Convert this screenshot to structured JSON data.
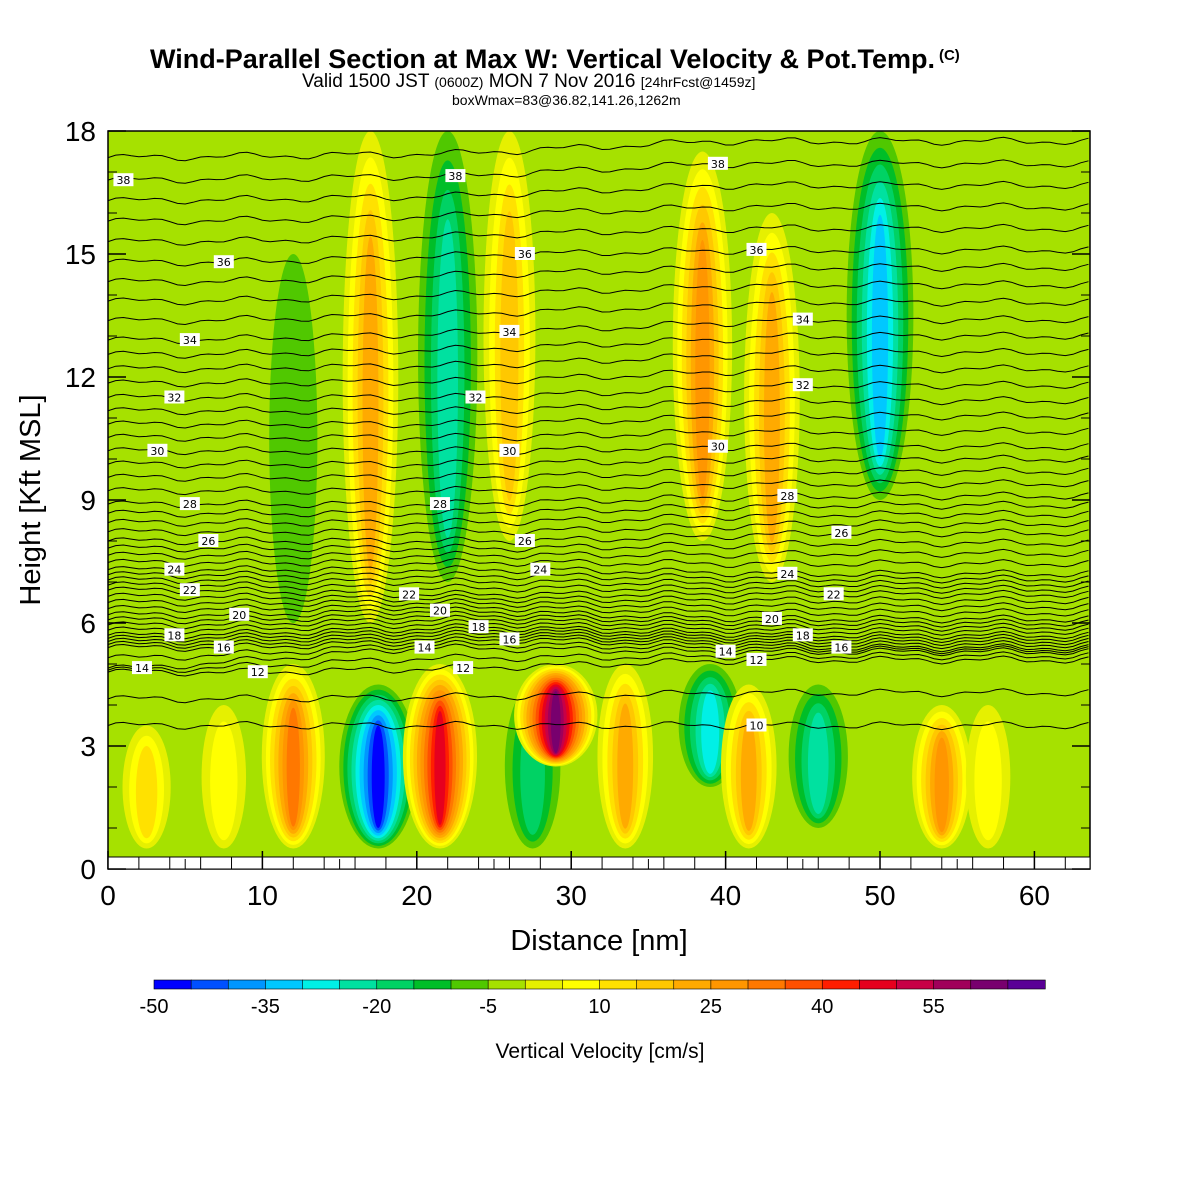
{
  "header": {
    "title": "Wind-Parallel Section at Max W: Vertical Velocity & Pot.Temp.",
    "copyright": "(C)",
    "valid_prefix": "Valid 1500 JST",
    "valid_utc": "(0600Z)",
    "valid_date": "MON 7 Nov 2016",
    "forecast": "[24hrFcst@1459z]",
    "box_info": "boxWmax=83@36.82,141.26,1262m"
  },
  "colors": {
    "background_field": "#a6e100",
    "frame": "#000000"
  },
  "chart_data": {
    "type": "heatmap",
    "xlabel": "Distance [nm]",
    "ylabel": "Height [Kft MSL]",
    "xlim": [
      0,
      63.6
    ],
    "ylim": [
      0,
      18
    ],
    "x_ticks": [
      0,
      10,
      20,
      30,
      40,
      50,
      60
    ],
    "y_ticks": [
      0,
      3,
      6,
      9,
      12,
      15,
      18
    ],
    "x_tick_labels": [
      "0",
      "10",
      "20",
      "30",
      "40",
      "50",
      "60"
    ],
    "y_tick_labels": [
      "0",
      "3",
      "6",
      "9",
      "12",
      "15",
      "18"
    ],
    "colorbar": {
      "label": "Vertical Velocity [cm/s]",
      "levels": [
        -50,
        -45,
        -40,
        -35,
        -30,
        -25,
        -20,
        -15,
        -10,
        -5,
        0,
        5,
        10,
        15,
        20,
        25,
        30,
        35,
        40,
        45,
        50,
        55,
        60,
        65
      ],
      "tick_values": [
        -50,
        -35,
        -20,
        -5,
        10,
        25,
        40,
        55
      ],
      "tick_labels": [
        "-50",
        "-35",
        "-20",
        "-5",
        "10",
        "25",
        "40",
        "55"
      ],
      "colors": [
        "#0000ff",
        "#0050ff",
        "#0096ff",
        "#00c8ff",
        "#00f0e6",
        "#00e1a0",
        "#00d264",
        "#00be28",
        "#50c800",
        "#a6e100",
        "#e6f000",
        "#ffff00",
        "#ffe100",
        "#ffc800",
        "#ffaa00",
        "#ff9600",
        "#ff7800",
        "#ff5000",
        "#ff1e00",
        "#e6001e",
        "#c80046",
        "#a0005a",
        "#78006e",
        "#5a0096"
      ]
    },
    "vertical_velocity_cells": [
      {
        "x": 2.5,
        "z_bottom": 0.5,
        "z_top": 3.5,
        "w": 10
      },
      {
        "x": 5,
        "z_bottom": 0.5,
        "z_top": 4.5,
        "w": -5
      },
      {
        "x": 7.5,
        "z_bottom": 0.5,
        "z_top": 4,
        "w": 5
      },
      {
        "x": 12,
        "z_bottom": 0.5,
        "z_top": 5,
        "w": 30
      },
      {
        "x": 12,
        "z_bottom": 6,
        "z_top": 15,
        "w": -10
      },
      {
        "x": 14.5,
        "z_bottom": 0.5,
        "z_top": 4,
        "w": -5
      },
      {
        "x": 17.5,
        "z_bottom": 0.5,
        "z_top": 4.5,
        "w": -50
      },
      {
        "x": 17,
        "z_bottom": 6,
        "z_top": 18,
        "w": 20
      },
      {
        "x": 21.5,
        "z_bottom": 0.5,
        "z_top": 5,
        "w": 45
      },
      {
        "x": 22,
        "z_bottom": 7,
        "z_top": 18,
        "w": -25
      },
      {
        "x": 27.5,
        "z_bottom": 0.5,
        "z_top": 4.5,
        "w": -20
      },
      {
        "x": 26,
        "z_bottom": 8,
        "z_top": 18,
        "w": 15
      },
      {
        "x": 29,
        "z_bottom": 2.5,
        "z_top": 5,
        "w": 60
      },
      {
        "x": 33.5,
        "z_bottom": 0.5,
        "z_top": 5,
        "w": 20
      },
      {
        "x": 38.5,
        "z_bottom": 8,
        "z_top": 17.5,
        "w": 25
      },
      {
        "x": 39,
        "z_bottom": 2,
        "z_top": 5,
        "w": -30
      },
      {
        "x": 41.5,
        "z_bottom": 0.5,
        "z_top": 4.5,
        "w": 20
      },
      {
        "x": 43,
        "z_bottom": 7,
        "z_top": 16,
        "w": 20
      },
      {
        "x": 46,
        "z_bottom": 1,
        "z_top": 4.5,
        "w": -25
      },
      {
        "x": 50,
        "z_bottom": 9,
        "z_top": 18,
        "w": -35
      },
      {
        "x": 54,
        "z_bottom": 0.5,
        "z_top": 4,
        "w": 25
      },
      {
        "x": 57,
        "z_bottom": 0.5,
        "z_top": 4,
        "w": 5
      },
      {
        "x": 60,
        "z_bottom": 1,
        "z_top": 4,
        "w": -5
      }
    ],
    "theta_contour_labels": [
      {
        "value": "38",
        "x": 1,
        "z": 16.8
      },
      {
        "value": "38",
        "x": 22.5,
        "z": 16.9
      },
      {
        "value": "38",
        "x": 39.5,
        "z": 17.2
      },
      {
        "value": "36",
        "x": 7.5,
        "z": 14.8
      },
      {
        "value": "36",
        "x": 27,
        "z": 15
      },
      {
        "value": "36",
        "x": 42,
        "z": 15.1
      },
      {
        "value": "34",
        "x": 5.3,
        "z": 12.9
      },
      {
        "value": "34",
        "x": 26,
        "z": 13.1
      },
      {
        "value": "34",
        "x": 45,
        "z": 13.4
      },
      {
        "value": "32",
        "x": 4.3,
        "z": 11.5
      },
      {
        "value": "32",
        "x": 23.8,
        "z": 11.5
      },
      {
        "value": "32",
        "x": 45,
        "z": 11.8
      },
      {
        "value": "30",
        "x": 3.2,
        "z": 10.2
      },
      {
        "value": "30",
        "x": 26,
        "z": 10.2
      },
      {
        "value": "30",
        "x": 39.5,
        "z": 10.3
      },
      {
        "value": "28",
        "x": 5.3,
        "z": 8.9
      },
      {
        "value": "28",
        "x": 21.5,
        "z": 8.9
      },
      {
        "value": "28",
        "x": 44,
        "z": 9.1
      },
      {
        "value": "26",
        "x": 6.5,
        "z": 8
      },
      {
        "value": "26",
        "x": 27,
        "z": 8
      },
      {
        "value": "26",
        "x": 47.5,
        "z": 8.2
      },
      {
        "value": "24",
        "x": 4.3,
        "z": 7.3
      },
      {
        "value": "24",
        "x": 28,
        "z": 7.3
      },
      {
        "value": "24",
        "x": 44,
        "z": 7.2
      },
      {
        "value": "22",
        "x": 5.3,
        "z": 6.8
      },
      {
        "value": "22",
        "x": 19.5,
        "z": 6.7
      },
      {
        "value": "22",
        "x": 47,
        "z": 6.7
      },
      {
        "value": "20",
        "x": 8.5,
        "z": 6.2
      },
      {
        "value": "20",
        "x": 21.5,
        "z": 6.3
      },
      {
        "value": "20",
        "x": 43,
        "z": 6.1
      },
      {
        "value": "18",
        "x": 4.3,
        "z": 5.7
      },
      {
        "value": "18",
        "x": 24,
        "z": 5.9
      },
      {
        "value": "18",
        "x": 45,
        "z": 5.7
      },
      {
        "value": "16",
        "x": 7.5,
        "z": 5.4
      },
      {
        "value": "16",
        "x": 26,
        "z": 5.6
      },
      {
        "value": "16",
        "x": 47.5,
        "z": 5.4
      },
      {
        "value": "14",
        "x": 2.2,
        "z": 4.9
      },
      {
        "value": "14",
        "x": 20.5,
        "z": 5.4
      },
      {
        "value": "14",
        "x": 40,
        "z": 5.3
      },
      {
        "value": "12",
        "x": 9.7,
        "z": 4.8
      },
      {
        "value": "12",
        "x": 23,
        "z": 4.9
      },
      {
        "value": "12",
        "x": 42,
        "z": 5.1
      },
      {
        "value": "10",
        "x": 42,
        "z": 3.5
      }
    ]
  }
}
